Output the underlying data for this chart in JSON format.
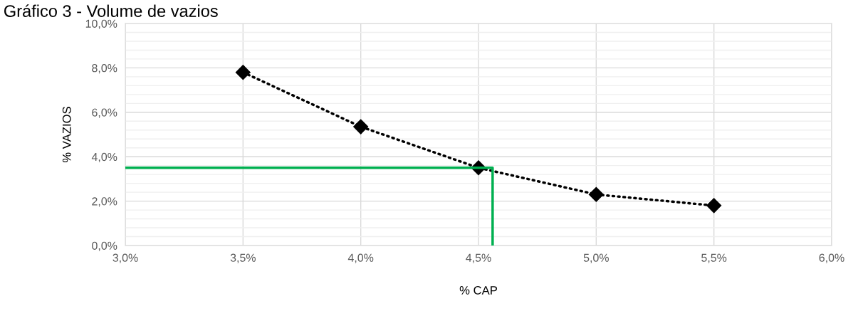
{
  "chart_data": {
    "type": "line",
    "title": "Gráfico 3 - Volume de vazios",
    "xlabel": "% CAP",
    "ylabel": "% VAZIOS",
    "series": [
      {
        "color": "#000000",
        "marker": "diamond",
        "line_style": "dotted",
        "x": [
          3.5,
          4.0,
          4.5,
          5.0,
          5.5
        ],
        "values": [
          7.8,
          5.35,
          3.5,
          2.3,
          1.8
        ]
      },
      {
        "color": "#00b050",
        "marker": "none",
        "line_style": "solid",
        "x": [
          3.0,
          4.56,
          4.56
        ],
        "values": [
          3.5,
          3.5,
          0.0
        ]
      }
    ],
    "xlim": [
      3.0,
      6.0
    ],
    "xticks": [
      {
        "value": 3.0,
        "label": "3,0%"
      },
      {
        "value": 3.5,
        "label": "3,5%"
      },
      {
        "value": 4.0,
        "label": "4,0%"
      },
      {
        "value": 4.5,
        "label": "4,5%"
      },
      {
        "value": 5.0,
        "label": "5,0%"
      },
      {
        "value": 5.5,
        "label": "5,5%"
      },
      {
        "value": 6.0,
        "label": "6,0%"
      }
    ],
    "ylim": [
      0,
      10
    ],
    "yticks": [
      {
        "value": 0,
        "label": "0,0%"
      },
      {
        "value": 0.4,
        "label": null
      },
      {
        "value": 0.8,
        "label": null
      },
      {
        "value": 1.2,
        "label": null
      },
      {
        "value": 1.6,
        "label": null
      },
      {
        "value": 2,
        "label": "2,0%"
      },
      {
        "value": 2.4,
        "label": null
      },
      {
        "value": 2.8,
        "label": null
      },
      {
        "value": 3.2,
        "label": null
      },
      {
        "value": 3.6,
        "label": null
      },
      {
        "value": 4,
        "label": "4,0%"
      },
      {
        "value": 4.4,
        "label": null
      },
      {
        "value": 4.8,
        "label": null
      },
      {
        "value": 5.2,
        "label": null
      },
      {
        "value": 5.6,
        "label": null
      },
      {
        "value": 6,
        "label": "6,0%"
      },
      {
        "value": 6.4,
        "label": null
      },
      {
        "value": 6.8,
        "label": null
      },
      {
        "value": 7.2,
        "label": null
      },
      {
        "value": 7.6,
        "label": null
      },
      {
        "value": 8,
        "label": "8,0%"
      },
      {
        "value": 8.4,
        "label": null
      },
      {
        "value": 8.8,
        "label": null
      },
      {
        "value": 9.2,
        "label": null
      },
      {
        "value": 9.6,
        "label": null
      },
      {
        "value": 10,
        "label": "10,0%"
      }
    ],
    "grid": true
  }
}
